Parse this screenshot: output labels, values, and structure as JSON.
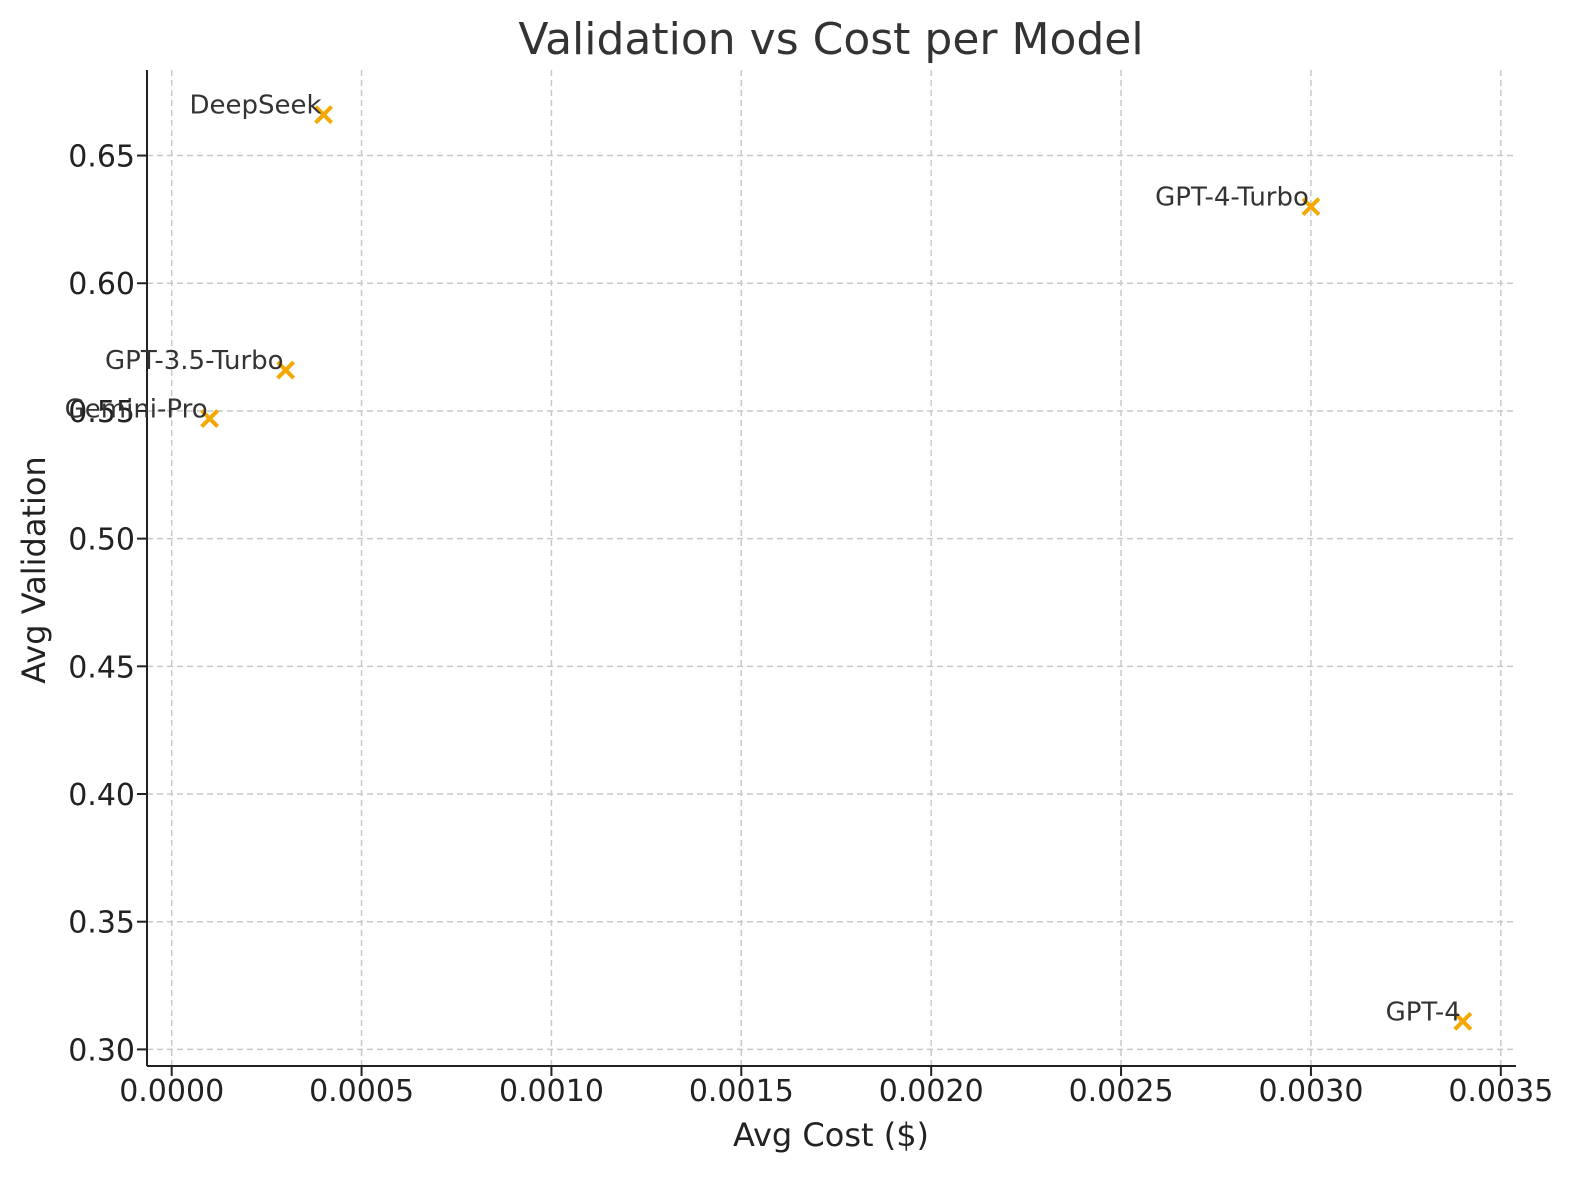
{
  "chart_data": {
    "type": "scatter",
    "title": "Validation vs Cost per Model",
    "xlabel": "Avg Cost ($)",
    "ylabel": "Avg Validation",
    "xlim": [
      -6.5e-05,
      0.00354
    ],
    "ylim": [
      0.2935,
      0.6835
    ],
    "xticks": [
      0.0,
      0.0005,
      0.001,
      0.0015,
      0.002,
      0.0025,
      0.003,
      0.0035
    ],
    "xtick_labels": [
      "0.0000",
      "0.0005",
      "0.0010",
      "0.0015",
      "0.0020",
      "0.0025",
      "0.0030",
      "0.0035"
    ],
    "yticks": [
      0.3,
      0.35,
      0.4,
      0.45,
      0.5,
      0.55,
      0.6,
      0.65
    ],
    "ytick_labels": [
      "0.30",
      "0.35",
      "0.40",
      "0.45",
      "0.50",
      "0.55",
      "0.60",
      "0.65"
    ],
    "grid": true,
    "marker": "x",
    "marker_color": "#f5a800",
    "points": [
      {
        "label": "DeepSeek",
        "x": 0.0004,
        "y": 0.666
      },
      {
        "label": "GPT-4-Turbo",
        "x": 0.003,
        "y": 0.63
      },
      {
        "label": "GPT-3.5-Turbo",
        "x": 0.0003,
        "y": 0.566
      },
      {
        "label": "Gemini-Pro",
        "x": 0.0001,
        "y": 0.547
      },
      {
        "label": "GPT-4",
        "x": 0.0034,
        "y": 0.311
      }
    ]
  }
}
